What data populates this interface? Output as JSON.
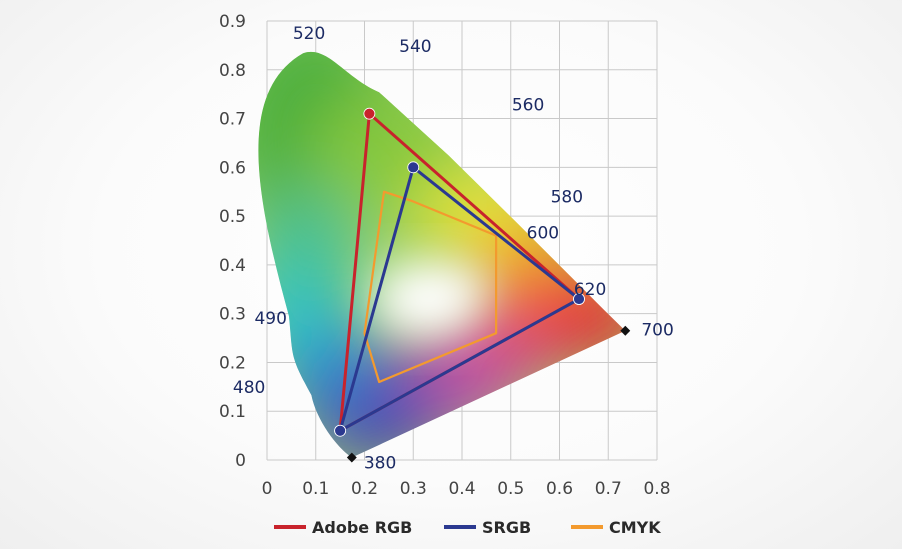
{
  "chart_data": {
    "type": "scatter",
    "title": "",
    "xlabel": "",
    "ylabel": "",
    "xlim": [
      0,
      0.8
    ],
    "ylim": [
      0,
      0.9
    ],
    "grid": true,
    "x_ticks": [
      "0",
      "0.1",
      "0.2",
      "0.3",
      "0.4",
      "0.5",
      "0.6",
      "0.7",
      "0.8"
    ],
    "y_ticks": [
      "0",
      "0.1",
      "0.2",
      "0.3",
      "0.4",
      "0.5",
      "0.6",
      "0.7",
      "0.8",
      "0.9"
    ],
    "spectral_locus": [
      {
        "wavelength": 380,
        "x": 0.174,
        "y": 0.005
      },
      {
        "wavelength": 480,
        "x": 0.091,
        "y": 0.133
      },
      {
        "wavelength": 490,
        "x": 0.045,
        "y": 0.295
      },
      {
        "wavelength": 520,
        "x": 0.074,
        "y": 0.834
      },
      {
        "wavelength": 540,
        "x": 0.23,
        "y": 0.754
      },
      {
        "wavelength": 560,
        "x": 0.373,
        "y": 0.624
      },
      {
        "wavelength": 580,
        "x": 0.512,
        "y": 0.487
      },
      {
        "wavelength": 600,
        "x": 0.627,
        "y": 0.372
      },
      {
        "wavelength": 620,
        "x": 0.691,
        "y": 0.308
      },
      {
        "wavelength": 700,
        "x": 0.735,
        "y": 0.265
      }
    ],
    "wavelength_labels": [
      "520",
      "540",
      "560",
      "580",
      "600",
      "620",
      "700",
      "490",
      "480",
      "380"
    ],
    "series": [
      {
        "name": "Adobe RGB",
        "color": "#c8232c",
        "vertices": [
          {
            "x": 0.64,
            "y": 0.33
          },
          {
            "x": 0.21,
            "y": 0.71
          },
          {
            "x": 0.15,
            "y": 0.06
          }
        ]
      },
      {
        "name": "SRGB",
        "color": "#2b3990",
        "vertices": [
          {
            "x": 0.64,
            "y": 0.33
          },
          {
            "x": 0.3,
            "y": 0.6
          },
          {
            "x": 0.15,
            "y": 0.06
          }
        ]
      },
      {
        "name": "CMYK",
        "color": "#f39a2e",
        "vertices": [
          {
            "x": 0.24,
            "y": 0.55
          },
          {
            "x": 0.2,
            "y": 0.26
          },
          {
            "x": 0.23,
            "y": 0.16
          },
          {
            "x": 0.47,
            "y": 0.26
          },
          {
            "x": 0.47,
            "y": 0.46
          },
          {
            "x": 0.3,
            "y": 0.53
          }
        ]
      }
    ],
    "legend_position": "bottom"
  }
}
